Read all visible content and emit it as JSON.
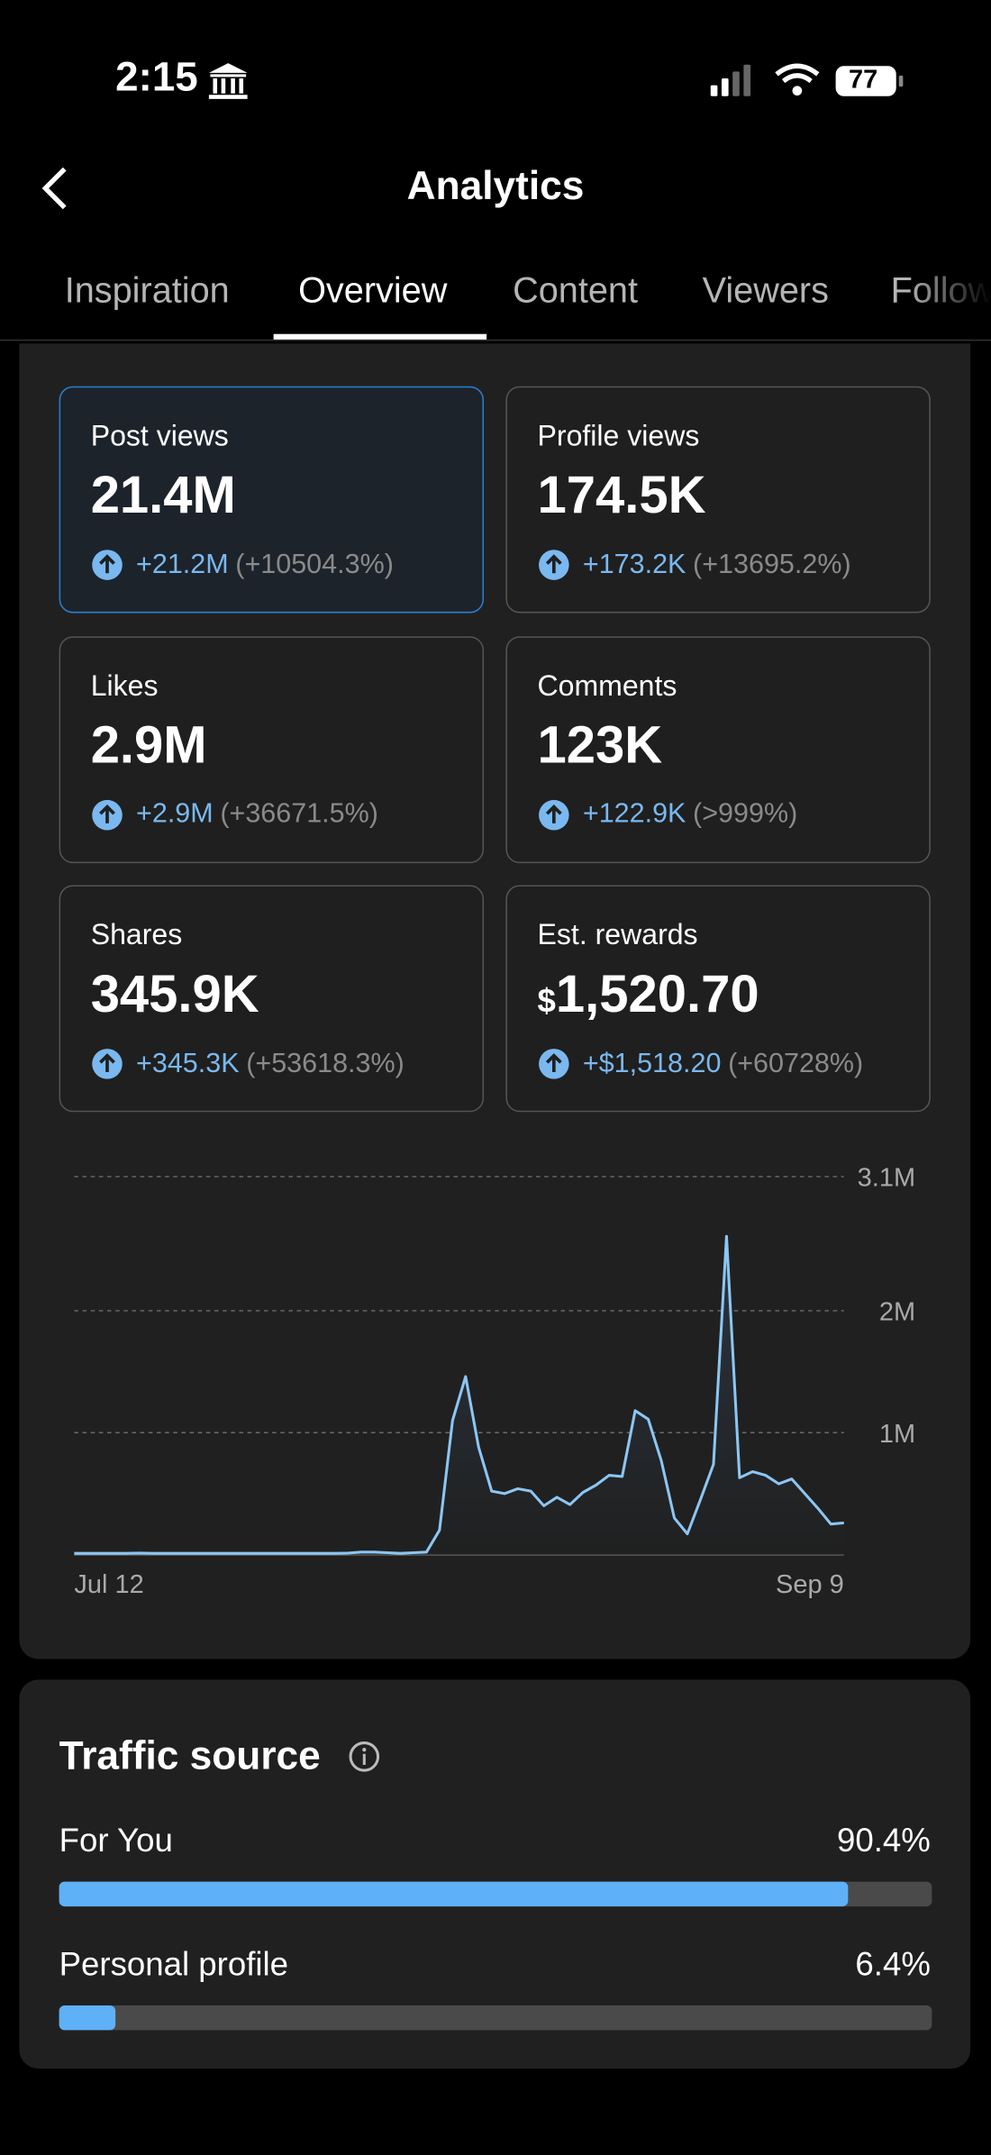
{
  "status_bar": {
    "time": "2:15",
    "battery": "77"
  },
  "header": {
    "title": "Analytics"
  },
  "tabs": [
    "Inspiration",
    "Overview",
    "Content",
    "Viewers",
    "Followers"
  ],
  "cards": [
    {
      "label": "Post views",
      "value": "21.4M",
      "change": "+21.2M",
      "percent": "(+10504.3%)"
    },
    {
      "label": "Profile views",
      "value": "174.5K",
      "change": "+173.2K",
      "percent": "(+13695.2%)"
    },
    {
      "label": "Likes",
      "value": "2.9M",
      "change": "+2.9M",
      "percent": "(+36671.5%)"
    },
    {
      "label": "Comments",
      "value": "123K",
      "change": "+122.9K",
      "percent": "(>999%)"
    },
    {
      "label": "Shares",
      "value": "345.9K",
      "change": "+345.3K",
      "percent": "(+53618.3%)"
    },
    {
      "label": "Est. rewards",
      "currency": "$",
      "value": "1,520.70",
      "change": "+$1,518.20",
      "percent": "(+60728%)"
    }
  ],
  "chart_data": {
    "type": "line",
    "categories": [
      "Jul 12",
      null,
      null,
      null,
      null,
      null,
      null,
      null,
      null,
      null,
      null,
      null,
      null,
      null,
      null,
      null,
      null,
      null,
      null,
      null,
      null,
      null,
      null,
      null,
      null,
      null,
      null,
      null,
      null,
      null,
      null,
      null,
      null,
      null,
      null,
      null,
      null,
      null,
      null,
      null,
      null,
      null,
      null,
      null,
      null,
      null,
      null,
      null,
      null,
      null,
      null,
      null,
      null,
      null,
      null,
      null,
      null,
      null,
      null,
      "Sep 9"
    ],
    "series": [
      {
        "color": "#8cc6f3",
        "values": [
          10000,
          10000,
          10000,
          10000,
          10000,
          12000,
          10000,
          10000,
          10000,
          10000,
          10000,
          10000,
          10000,
          10000,
          10000,
          10000,
          10000,
          10000,
          10000,
          10000,
          10000,
          12000,
          20000,
          20000,
          15000,
          10000,
          15000,
          20000,
          200000,
          1100000,
          1460000,
          880000,
          520000,
          500000,
          540000,
          520000,
          400000,
          470000,
          410000,
          510000,
          570000,
          650000,
          640000,
          1180000,
          1110000,
          770000,
          300000,
          170000,
          450000,
          740000,
          2610000,
          630000,
          680000,
          650000,
          580000,
          620000,
          500000,
          380000,
          250000,
          260000
        ]
      }
    ],
    "ylim": [
      0,
      3100000
    ],
    "yticks": [
      {
        "value": 1000000,
        "label": "1M"
      },
      {
        "value": 2000000,
        "label": "2M"
      },
      {
        "value": 3100000,
        "label": "3.1M"
      }
    ],
    "grid": true
  },
  "traffic_source": {
    "title": "Traffic source",
    "categories": [
      "For You",
      "Personal profile"
    ],
    "values": [
      90.4,
      6.4
    ],
    "value_labels": [
      "90.4%",
      "6.4%"
    ],
    "xlim": [
      0,
      100
    ],
    "color": "#5eb1f7"
  }
}
